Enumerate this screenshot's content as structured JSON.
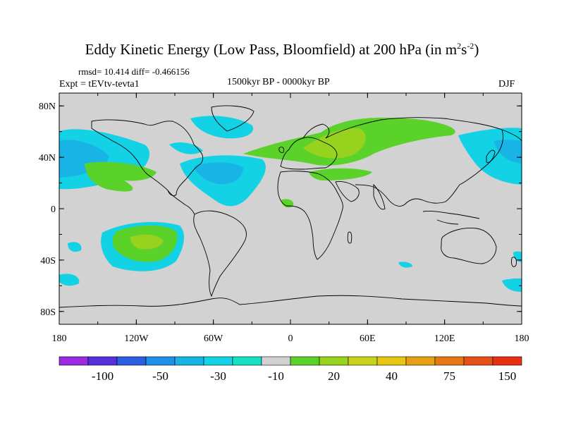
{
  "title": {
    "text": "Eddy Kinetic Energy (Low Pass, Bloomfield) at 200 hPa (in m",
    "sup1": "2",
    "mid": "s",
    "sup2": "-2",
    "end": ")"
  },
  "stats": "rmsd= 10.414 diff= -0.466156",
  "experiment": "Expt = tEVtv-tevta1",
  "period": "1500kyr BP - 0000kyr BP",
  "season": "DJF",
  "axes": {
    "lat_labels": [
      "80N",
      "40N",
      "0",
      "40S",
      "80S"
    ],
    "lat_values": [
      80,
      40,
      0,
      -40,
      -80
    ],
    "lon_labels": [
      "180",
      "120W",
      "60W",
      "0",
      "60E",
      "120E",
      "180"
    ],
    "lon_values": [
      -180,
      -120,
      -60,
      0,
      60,
      120,
      180
    ],
    "lat_range": [
      -90,
      90
    ],
    "lon_range": [
      -180,
      180
    ]
  },
  "colorbar": {
    "labels": [
      "-100",
      "-50",
      "-30",
      "-10",
      "20",
      "40",
      "75",
      "150"
    ],
    "label_boundaries": [
      2,
      4,
      6,
      8,
      10,
      12,
      14,
      16
    ],
    "colors": [
      "#9b2ae0",
      "#5530d8",
      "#2a5fe0",
      "#1e90e8",
      "#18b4e6",
      "#14d2e6",
      "#14e0c4",
      "#d2d2d2",
      "#5ad22a",
      "#96d21e",
      "#c8d21a",
      "#e6c814",
      "#e6a014",
      "#e67814",
      "#e65014",
      "#e63212"
    ]
  },
  "colors": {
    "land_background": "#d2d2d2",
    "coast": "#000000"
  }
}
